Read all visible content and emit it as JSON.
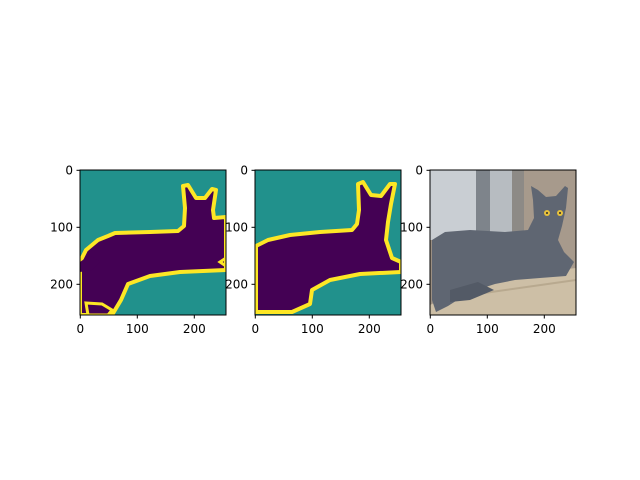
{
  "figure": {
    "panels": [
      {
        "name": "predicted-mask",
        "kind": "segmentation-mask",
        "x_ticks": [
          "0",
          "100",
          "200"
        ],
        "y_ticks": [
          "0",
          "100",
          "200"
        ],
        "colors": {
          "background": "#21918c",
          "foreground": "#440154",
          "boundary": "#fde725"
        }
      },
      {
        "name": "ground-truth-mask",
        "kind": "segmentation-mask",
        "x_ticks": [
          "0",
          "100",
          "200"
        ],
        "y_ticks": [
          "0",
          "100",
          "200"
        ],
        "colors": {
          "background": "#21918c",
          "foreground": "#440154",
          "boundary": "#fde725"
        }
      },
      {
        "name": "cat-photo",
        "kind": "photo",
        "x_ticks": [
          "0",
          "100",
          "200"
        ],
        "y_ticks": [
          "0",
          "100",
          "200"
        ],
        "colors": {
          "cat": "#5f6672",
          "window": "#c9ced3",
          "ledge": "#cdbfa6",
          "wall": "#9b8f82",
          "eye": "#e8c23a"
        }
      }
    ]
  }
}
